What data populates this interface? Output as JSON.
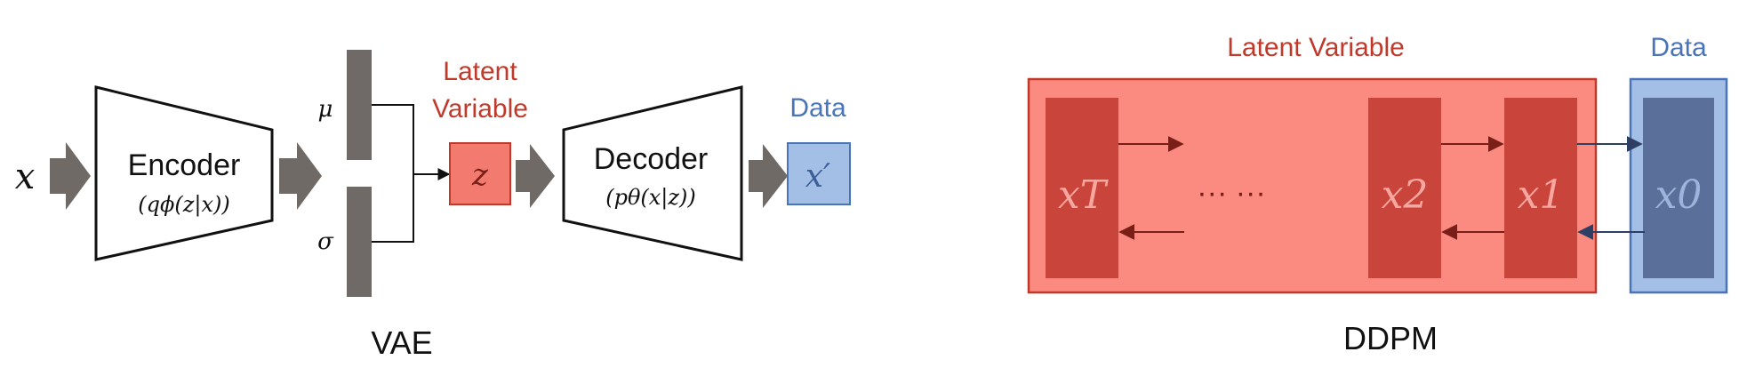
{
  "vae": {
    "input": "x",
    "encoder": {
      "label": "Encoder",
      "formula": "(qϕ(z|x))"
    },
    "mu": "μ",
    "sigma": "σ",
    "latent_label_line1": "Latent",
    "latent_label_line2": "Variable",
    "z": "z",
    "decoder": {
      "label": "Decoder",
      "formula": "(pθ(x|z))"
    },
    "data_label": "Data",
    "output": "x′",
    "caption": "VAE"
  },
  "ddpm": {
    "latent_label": "Latent Variable",
    "data_label": "Data",
    "xT": "xT",
    "dots": "···  ···",
    "x2": "x2",
    "x1": "x1",
    "x0": "x0",
    "caption": "DDPM"
  },
  "colors": {
    "latent_red_text": "#c0392b",
    "latent_fill": "#fb8a80",
    "latent_block": "#c9443a",
    "data_blue_text": "#4a74b8",
    "data_fill": "#a4bfe6",
    "data_block": "#5a6f9a",
    "gray_arrow": "#706a66",
    "gray_bar": "#6f6a67",
    "z_box": "#f27a6e"
  }
}
